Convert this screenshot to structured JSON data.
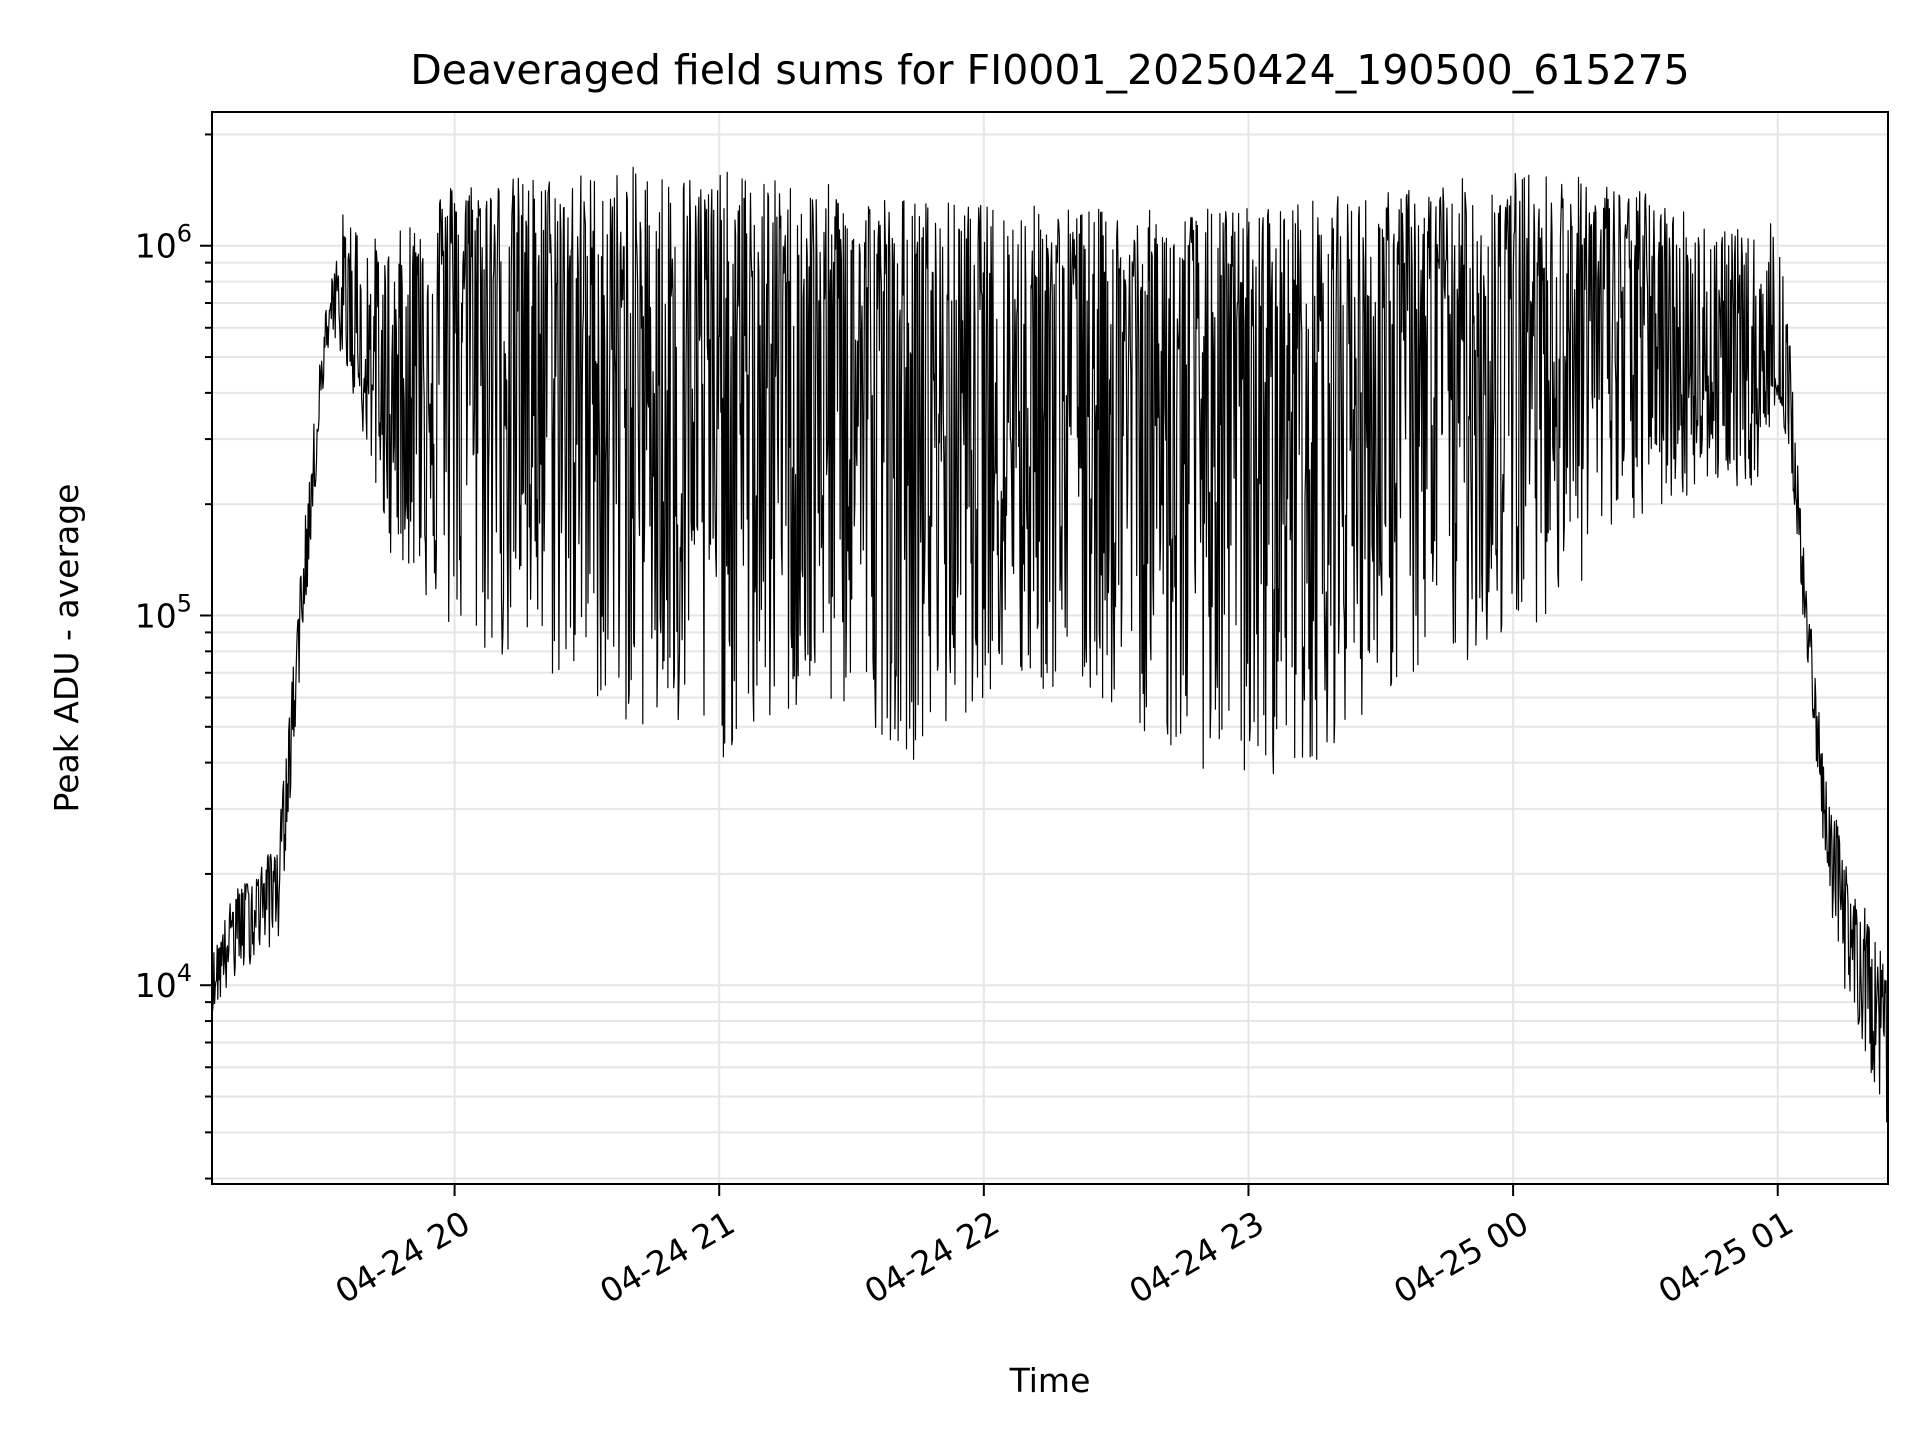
{
  "chart_data": {
    "type": "line",
    "title": "Deaveraged field sums for FI0001_20250424_190500_615275",
    "xlabel": "Time",
    "ylabel": "Peak ADU - average",
    "yscale": "log",
    "ylim": [
      2900,
      2300000
    ],
    "xlim": [
      "2025-04-24 19:05",
      "2025-04-25 01:25"
    ],
    "grid": true,
    "line_color": "#000000",
    "grid_color": "#e6e6e6",
    "x_ticks": [
      {
        "value": "2025-04-24 20:00",
        "label": "04-24 20"
      },
      {
        "value": "2025-04-24 21:00",
        "label": "04-24 21"
      },
      {
        "value": "2025-04-24 22:00",
        "label": "04-24 22"
      },
      {
        "value": "2025-04-24 23:00",
        "label": "04-24 23"
      },
      {
        "value": "2025-04-25 00:00",
        "label": "04-25 00"
      },
      {
        "value": "2025-04-25 01:00",
        "label": "04-25 01"
      }
    ],
    "y_ticks": [
      {
        "value": 10000,
        "base": "10",
        "exp": "4"
      },
      {
        "value": 100000,
        "base": "10",
        "exp": "5"
      },
      {
        "value": 1000000,
        "base": "10",
        "exp": "6"
      }
    ],
    "series": [
      {
        "x": [
          "2025-04-24 19:05",
          "2025-04-24 19:10",
          "2025-04-24 19:15",
          "2025-04-24 19:20",
          "2025-04-24 19:22",
          "2025-04-24 19:25",
          "2025-04-24 19:28",
          "2025-04-24 19:30",
          "2025-04-24 19:32",
          "2025-04-24 19:35",
          "2025-04-24 19:40",
          "2025-04-24 19:45",
          "2025-04-24 19:50",
          "2025-04-24 19:55",
          "2025-04-24 20:00",
          "2025-04-24 20:15",
          "2025-04-24 20:30",
          "2025-04-24 20:45",
          "2025-04-24 21:00",
          "2025-04-24 21:15",
          "2025-04-24 21:30",
          "2025-04-24 21:45",
          "2025-04-24 22:00",
          "2025-04-24 22:15",
          "2025-04-24 22:30",
          "2025-04-24 22:45",
          "2025-04-24 23:00",
          "2025-04-24 23:15",
          "2025-04-24 23:30",
          "2025-04-24 23:45",
          "2025-04-25 00:00",
          "2025-04-25 00:15",
          "2025-04-25 00:30",
          "2025-04-25 00:45",
          "2025-04-25 00:55",
          "2025-04-25 01:00",
          "2025-04-25 01:03",
          "2025-04-25 01:06",
          "2025-04-25 01:10",
          "2025-04-25 01:15",
          "2025-04-25 01:20",
          "2025-04-25 01:25"
        ],
        "y": [
          10000,
          15000,
          17000,
          20000,
          35000,
          100000,
          250000,
          500000,
          650000,
          600000,
          450000,
          350000,
          500000,
          700000,
          800000,
          600000,
          500000,
          450000,
          400000,
          500000,
          450000,
          380000,
          420000,
          480000,
          500000,
          350000,
          380000,
          400000,
          450000,
          520000,
          620000,
          700000,
          650000,
          420000,
          400000,
          450000,
          300000,
          120000,
          35000,
          15000,
          11000,
          7000
        ],
        "y_low": [
          8500,
          10000,
          12000,
          13000,
          25000,
          70000,
          180000,
          400000,
          550000,
          500000,
          280000,
          150000,
          130000,
          100000,
          80000,
          70000,
          60000,
          45000,
          40000,
          50000,
          55000,
          40000,
          60000,
          60000,
          55000,
          40000,
          35000,
          40000,
          60000,
          70000,
          85000,
          120000,
          180000,
          230000,
          220000,
          400000,
          250000,
          90000,
          25000,
          9000,
          6500,
          4000
        ],
        "y_high": [
          12000,
          18000,
          20000,
          25000,
          45000,
          130000,
          320000,
          600000,
          800000,
          1300000,
          1100000,
          1000000,
          1200000,
          1400000,
          1500000,
          1550000,
          1600000,
          1650000,
          1600000,
          1500000,
          1450000,
          1350000,
          1300000,
          1300000,
          1250000,
          1250000,
          1300000,
          1350000,
          1400000,
          1500000,
          1600000,
          1550000,
          1400000,
          1200000,
          1050000,
          1250000,
          500000,
          150000,
          45000,
          22000,
          16000,
          11000
        ]
      }
    ]
  }
}
